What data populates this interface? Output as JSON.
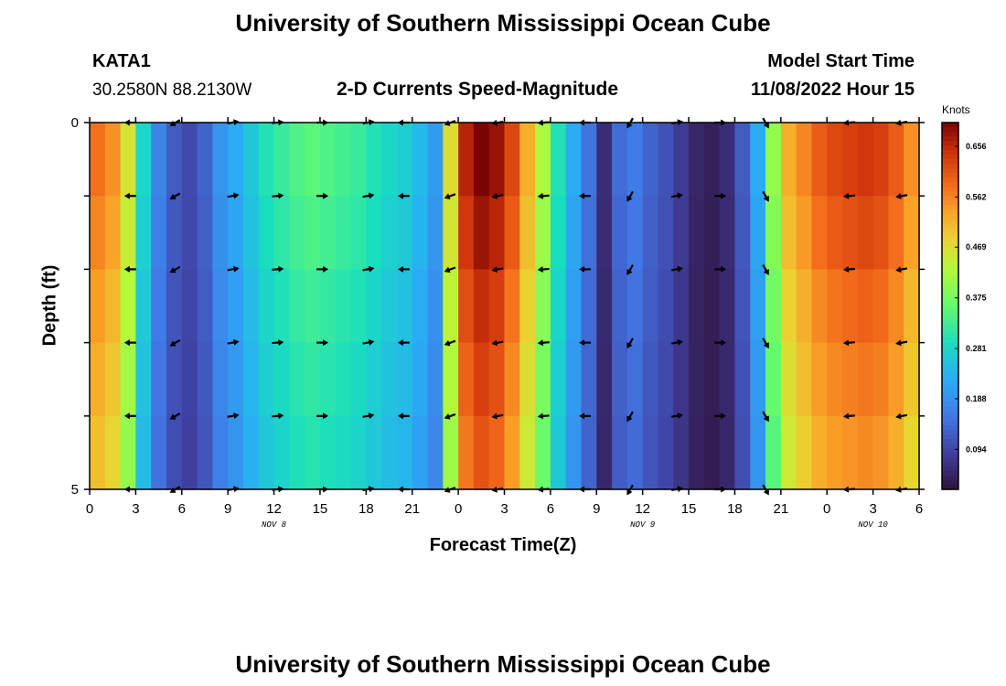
{
  "header": {
    "title": "University of Southern Mississippi Ocean Cube",
    "station": "KATA1",
    "coords": "30.2580N  88.2130W",
    "subtitle": "2-D Currents Speed-Magnitude",
    "model_label": "Model Start Time",
    "model_time": "11/08/2022 Hour 15"
  },
  "footer": {
    "title": "University of Southern Mississippi Ocean Cube"
  },
  "chart_data": {
    "type": "heatmap",
    "title": "2-D Currents Speed-Magnitude",
    "xlabel": "Forecast Time(Z)",
    "ylabel": "Depth (ft)",
    "colorbar_label": "Knots",
    "x_ticks": [
      "0",
      "3",
      "6",
      "9",
      "12",
      "15",
      "18",
      "21",
      "0",
      "3",
      "6",
      "9",
      "12",
      "15",
      "18",
      "21",
      "0",
      "3",
      "6"
    ],
    "date_labels": [
      {
        "text": "NOV 8",
        "tick_index": 4
      },
      {
        "text": "NOV 9",
        "tick_index": 12
      },
      {
        "text": "NOV 10",
        "tick_index": 17
      }
    ],
    "y_ticks": [
      "0",
      "",
      "",
      "",
      "",
      "5"
    ],
    "ylim": [
      0,
      5
    ],
    "xlim_hours": [
      0,
      54
    ],
    "colorbar_ticks": [
      "0.656",
      "0.562",
      "0.469",
      "0.375",
      "0.281",
      "0.188",
      "0.094"
    ],
    "colorbar_values": [
      0.656,
      0.562,
      0.469,
      0.375,
      0.281,
      0.188,
      0.094
    ],
    "colorbar_range": [
      0.02,
      0.7
    ],
    "speed_profile_hours": [
      0,
      1,
      2,
      3,
      4,
      5,
      6,
      7,
      8,
      9,
      10,
      11,
      12,
      13,
      14,
      15,
      16,
      17,
      18,
      19,
      20,
      21,
      22,
      23,
      24,
      25,
      26,
      27,
      28,
      29,
      30,
      31,
      32,
      33,
      34,
      35,
      36,
      37,
      38,
      39,
      40,
      41,
      42,
      43,
      44,
      45,
      46,
      47,
      48,
      49,
      50,
      51,
      52,
      53,
      54
    ],
    "speed_surface": [
      0.58,
      0.55,
      0.46,
      0.28,
      0.17,
      0.12,
      0.1,
      0.13,
      0.19,
      0.22,
      0.26,
      0.3,
      0.32,
      0.34,
      0.35,
      0.34,
      0.33,
      0.32,
      0.3,
      0.28,
      0.27,
      0.24,
      0.2,
      0.47,
      0.66,
      0.7,
      0.68,
      0.62,
      0.52,
      0.42,
      0.3,
      0.22,
      0.15,
      0.06,
      0.14,
      0.16,
      0.13,
      0.11,
      0.08,
      0.05,
      0.04,
      0.06,
      0.12,
      0.22,
      0.4,
      0.52,
      0.56,
      0.6,
      0.62,
      0.63,
      0.64,
      0.63,
      0.6,
      0.55,
      0.4
    ],
    "depth_rows": 5,
    "row_factors": [
      1.0,
      0.97,
      0.93,
      0.9,
      0.87
    ],
    "arrow_depths": [
      0,
      1,
      2,
      3,
      4,
      5
    ],
    "arrow_hours": [
      2.7,
      5.6,
      9.3,
      12.2,
      15.1,
      18.1,
      20.5,
      23.5,
      26.6,
      29.6,
      32.3,
      35.2,
      38.2,
      41.0,
      44.0,
      49.5,
      52.9
    ],
    "arrow_directions_deg": [
      180,
      210,
      10,
      5,
      0,
      10,
      180,
      200,
      190,
      185,
      180,
      240,
      10,
      0,
      300,
      185,
      190
    ]
  }
}
